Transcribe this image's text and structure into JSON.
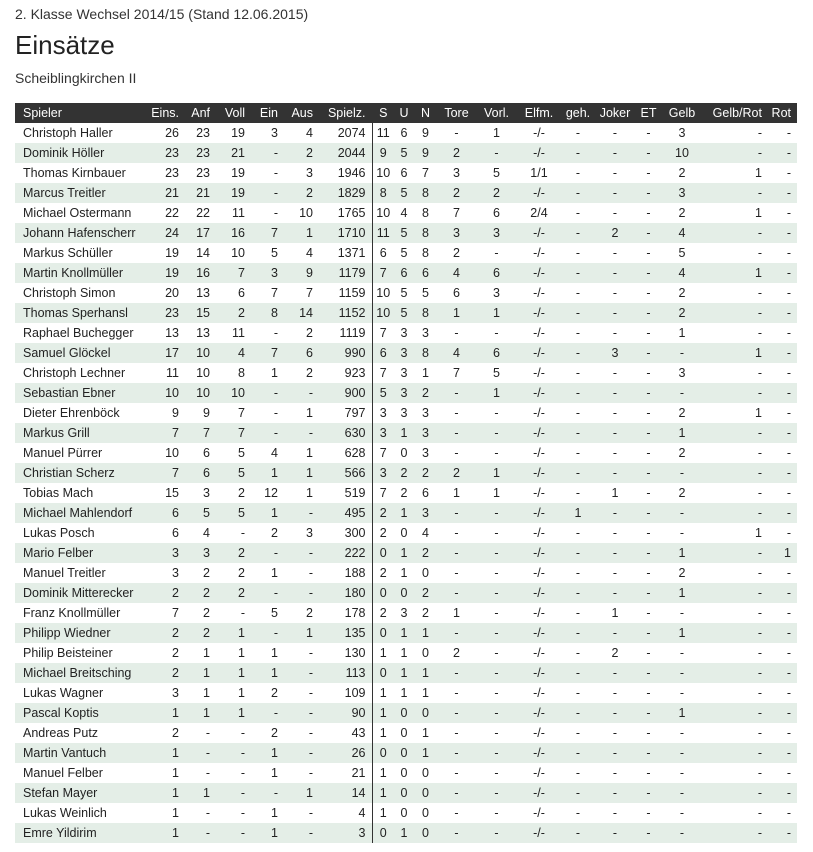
{
  "header": {
    "title": "2. Klasse Wechsel 2014/15 (Stand 12.06.2015)",
    "heading": "Einsätze",
    "team": "Scheiblingkirchen II"
  },
  "table": {
    "columns": [
      "Spieler",
      "Eins.",
      "Anf",
      "Voll",
      "Ein",
      "Aus",
      "Spielz.",
      "S",
      "U",
      "N",
      "Tore",
      "Vorl.",
      "Elfm.",
      "geh.",
      "Joker",
      "ET",
      "Gelb",
      "Gelb/Rot",
      "Rot"
    ],
    "rows": [
      [
        "Christoph Haller",
        "26",
        "23",
        "19",
        "3",
        "4",
        "2074",
        "11",
        "6",
        "9",
        "-",
        "1",
        "-/-",
        "-",
        "-",
        "-",
        "3",
        "-",
        "-"
      ],
      [
        "Dominik Höller",
        "23",
        "23",
        "21",
        "-",
        "2",
        "2044",
        "9",
        "5",
        "9",
        "2",
        "-",
        "-/-",
        "-",
        "-",
        "-",
        "10",
        "-",
        "-"
      ],
      [
        "Thomas Kirnbauer",
        "23",
        "23",
        "19",
        "-",
        "3",
        "1946",
        "10",
        "6",
        "7",
        "3",
        "5",
        "1/1",
        "-",
        "-",
        "-",
        "2",
        "1",
        "-"
      ],
      [
        "Marcus Treitler",
        "21",
        "21",
        "19",
        "-",
        "2",
        "1829",
        "8",
        "5",
        "8",
        "2",
        "2",
        "-/-",
        "-",
        "-",
        "-",
        "3",
        "-",
        "-"
      ],
      [
        "Michael Ostermann",
        "22",
        "22",
        "11",
        "-",
        "10",
        "1765",
        "10",
        "4",
        "8",
        "7",
        "6",
        "2/4",
        "-",
        "-",
        "-",
        "2",
        "1",
        "-"
      ],
      [
        "Johann Hafenscherr",
        "24",
        "17",
        "16",
        "7",
        "1",
        "1710",
        "11",
        "5",
        "8",
        "3",
        "3",
        "-/-",
        "-",
        "2",
        "-",
        "4",
        "-",
        "-"
      ],
      [
        "Markus Schüller",
        "19",
        "14",
        "10",
        "5",
        "4",
        "1371",
        "6",
        "5",
        "8",
        "2",
        "-",
        "-/-",
        "-",
        "-",
        "-",
        "5",
        "-",
        "-"
      ],
      [
        "Martin Knollmüller",
        "19",
        "16",
        "7",
        "3",
        "9",
        "1179",
        "7",
        "6",
        "6",
        "4",
        "6",
        "-/-",
        "-",
        "-",
        "-",
        "4",
        "1",
        "-"
      ],
      [
        "Christoph Simon",
        "20",
        "13",
        "6",
        "7",
        "7",
        "1159",
        "10",
        "5",
        "5",
        "6",
        "3",
        "-/-",
        "-",
        "-",
        "-",
        "2",
        "-",
        "-"
      ],
      [
        "Thomas Sperhansl",
        "23",
        "15",
        "2",
        "8",
        "14",
        "1152",
        "10",
        "5",
        "8",
        "1",
        "1",
        "-/-",
        "-",
        "-",
        "-",
        "2",
        "-",
        "-"
      ],
      [
        "Raphael Buchegger",
        "13",
        "13",
        "11",
        "-",
        "2",
        "1119",
        "7",
        "3",
        "3",
        "-",
        "-",
        "-/-",
        "-",
        "-",
        "-",
        "1",
        "-",
        "-"
      ],
      [
        "Samuel Glöckel",
        "17",
        "10",
        "4",
        "7",
        "6",
        "990",
        "6",
        "3",
        "8",
        "4",
        "6",
        "-/-",
        "-",
        "3",
        "-",
        "-",
        "1",
        "-"
      ],
      [
        "Christoph Lechner",
        "11",
        "10",
        "8",
        "1",
        "2",
        "923",
        "7",
        "3",
        "1",
        "7",
        "5",
        "-/-",
        "-",
        "-",
        "-",
        "3",
        "-",
        "-"
      ],
      [
        "Sebastian Ebner",
        "10",
        "10",
        "10",
        "-",
        "-",
        "900",
        "5",
        "3",
        "2",
        "-",
        "1",
        "-/-",
        "-",
        "-",
        "-",
        "-",
        "-",
        "-"
      ],
      [
        "Dieter Ehrenböck",
        "9",
        "9",
        "7",
        "-",
        "1",
        "797",
        "3",
        "3",
        "3",
        "-",
        "-",
        "-/-",
        "-",
        "-",
        "-",
        "2",
        "1",
        "-"
      ],
      [
        "Markus Grill",
        "7",
        "7",
        "7",
        "-",
        "-",
        "630",
        "3",
        "1",
        "3",
        "-",
        "-",
        "-/-",
        "-",
        "-",
        "-",
        "1",
        "-",
        "-"
      ],
      [
        "Manuel Pürrer",
        "10",
        "6",
        "5",
        "4",
        "1",
        "628",
        "7",
        "0",
        "3",
        "-",
        "-",
        "-/-",
        "-",
        "-",
        "-",
        "2",
        "-",
        "-"
      ],
      [
        "Christian Scherz",
        "7",
        "6",
        "5",
        "1",
        "1",
        "566",
        "3",
        "2",
        "2",
        "2",
        "1",
        "-/-",
        "-",
        "-",
        "-",
        "-",
        "-",
        "-"
      ],
      [
        "Tobias Mach",
        "15",
        "3",
        "2",
        "12",
        "1",
        "519",
        "7",
        "2",
        "6",
        "1",
        "1",
        "-/-",
        "-",
        "1",
        "-",
        "2",
        "-",
        "-"
      ],
      [
        "Michael Mahlendorf",
        "6",
        "5",
        "5",
        "1",
        "-",
        "495",
        "2",
        "1",
        "3",
        "-",
        "-",
        "-/-",
        "1",
        "-",
        "-",
        "-",
        "-",
        "-"
      ],
      [
        "Lukas Posch",
        "6",
        "4",
        "-",
        "2",
        "3",
        "300",
        "2",
        "0",
        "4",
        "-",
        "-",
        "-/-",
        "-",
        "-",
        "-",
        "-",
        "1",
        "-"
      ],
      [
        "Mario Felber",
        "3",
        "3",
        "2",
        "-",
        "-",
        "222",
        "0",
        "1",
        "2",
        "-",
        "-",
        "-/-",
        "-",
        "-",
        "-",
        "1",
        "-",
        "1"
      ],
      [
        "Manuel Treitler",
        "3",
        "2",
        "2",
        "1",
        "-",
        "188",
        "2",
        "1",
        "0",
        "-",
        "-",
        "-/-",
        "-",
        "-",
        "-",
        "2",
        "-",
        "-"
      ],
      [
        "Dominik Mitterecker",
        "2",
        "2",
        "2",
        "-",
        "-",
        "180",
        "0",
        "0",
        "2",
        "-",
        "-",
        "-/-",
        "-",
        "-",
        "-",
        "1",
        "-",
        "-"
      ],
      [
        "Franz Knollmüller",
        "7",
        "2",
        "-",
        "5",
        "2",
        "178",
        "2",
        "3",
        "2",
        "1",
        "-",
        "-/-",
        "-",
        "1",
        "-",
        "-",
        "-",
        "-"
      ],
      [
        "Philipp Wiedner",
        "2",
        "2",
        "1",
        "-",
        "1",
        "135",
        "0",
        "1",
        "1",
        "-",
        "-",
        "-/-",
        "-",
        "-",
        "-",
        "1",
        "-",
        "-"
      ],
      [
        "Philip Beisteiner",
        "2",
        "1",
        "1",
        "1",
        "-",
        "130",
        "1",
        "1",
        "0",
        "2",
        "-",
        "-/-",
        "-",
        "2",
        "-",
        "-",
        "-",
        "-"
      ],
      [
        "Michael Breitsching",
        "2",
        "1",
        "1",
        "1",
        "-",
        "113",
        "0",
        "1",
        "1",
        "-",
        "-",
        "-/-",
        "-",
        "-",
        "-",
        "-",
        "-",
        "-"
      ],
      [
        "Lukas Wagner",
        "3",
        "1",
        "1",
        "2",
        "-",
        "109",
        "1",
        "1",
        "1",
        "-",
        "-",
        "-/-",
        "-",
        "-",
        "-",
        "-",
        "-",
        "-"
      ],
      [
        "Pascal Koptis",
        "1",
        "1",
        "1",
        "-",
        "-",
        "90",
        "1",
        "0",
        "0",
        "-",
        "-",
        "-/-",
        "-",
        "-",
        "-",
        "1",
        "-",
        "-"
      ],
      [
        "Andreas Putz",
        "2",
        "-",
        "-",
        "2",
        "-",
        "43",
        "1",
        "0",
        "1",
        "-",
        "-",
        "-/-",
        "-",
        "-",
        "-",
        "-",
        "-",
        "-"
      ],
      [
        "Martin Vantuch",
        "1",
        "-",
        "-",
        "1",
        "-",
        "26",
        "0",
        "0",
        "1",
        "-",
        "-",
        "-/-",
        "-",
        "-",
        "-",
        "-",
        "-",
        "-"
      ],
      [
        "Manuel Felber",
        "1",
        "-",
        "-",
        "1",
        "-",
        "21",
        "1",
        "0",
        "0",
        "-",
        "-",
        "-/-",
        "-",
        "-",
        "-",
        "-",
        "-",
        "-"
      ],
      [
        "Stefan Mayer",
        "1",
        "1",
        "-",
        "-",
        "1",
        "14",
        "1",
        "0",
        "0",
        "-",
        "-",
        "-/-",
        "-",
        "-",
        "-",
        "-",
        "-",
        "-"
      ],
      [
        "Lukas Weinlich",
        "1",
        "-",
        "-",
        "1",
        "-",
        "4",
        "1",
        "0",
        "0",
        "-",
        "-",
        "-/-",
        "-",
        "-",
        "-",
        "-",
        "-",
        "-"
      ],
      [
        "Emre Yildirim",
        "1",
        "-",
        "-",
        "1",
        "-",
        "3",
        "0",
        "1",
        "0",
        "-",
        "-",
        "-/-",
        "-",
        "-",
        "-",
        "-",
        "-",
        "-"
      ]
    ]
  }
}
